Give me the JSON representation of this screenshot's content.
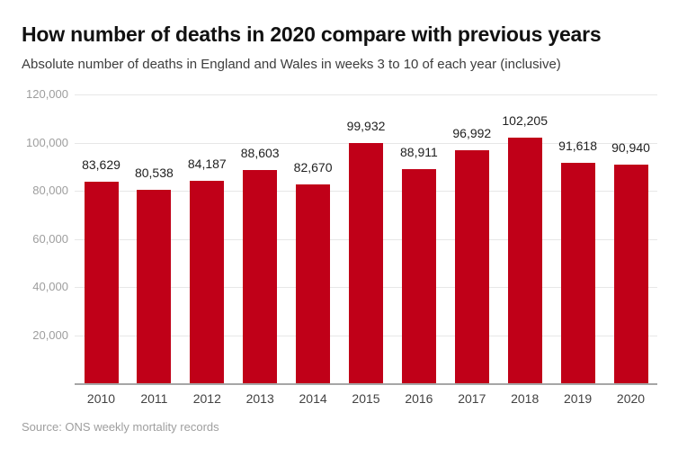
{
  "figure": {
    "title": "How number of deaths in 2020 compare with previous years",
    "subtitle": "Absolute number of deaths in England and Wales in weeks 3 to 10 of each year (inclusive)",
    "source": "Source: ONS weekly mortality records"
  },
  "colors": {
    "bar": "#c00018",
    "grid": "#e7e7e7",
    "axis_line": "#a6a6a6",
    "title_text": "#111111",
    "subtitle_text": "#3d3d3d",
    "ytick_text": "#9e9e9e",
    "xtick_text": "#424242",
    "value_label_text": "#212121",
    "source_text": "#9e9e9e"
  },
  "chart_data": {
    "type": "bar",
    "title": "How number of deaths in 2020 compare with previous years",
    "subtitle": "Absolute number of deaths in England and Wales in weeks 3 to 10 of each year (inclusive)",
    "source": "Source: ONS weekly mortality records",
    "categories": [
      "2010",
      "2011",
      "2012",
      "2013",
      "2014",
      "2015",
      "2016",
      "2017",
      "2018",
      "2019",
      "2020"
    ],
    "values": [
      83629,
      80538,
      84187,
      88603,
      82670,
      99932,
      88911,
      96992,
      102205,
      91618,
      90940
    ],
    "value_labels": [
      "83,629",
      "80,538",
      "84,187",
      "88,603",
      "82,670",
      "99,932",
      "88,911",
      "96,992",
      "102,205",
      "91,618",
      "90,940"
    ],
    "xlabel": "",
    "ylabel": "",
    "ylim": [
      0,
      120000
    ],
    "ytick_interval": 20000,
    "yticks": [
      {
        "value": 20000,
        "label": "20,000"
      },
      {
        "value": 40000,
        "label": "40,000"
      },
      {
        "value": 60000,
        "label": "60,000"
      },
      {
        "value": 80000,
        "label": "80,000"
      },
      {
        "value": 100000,
        "label": "100,000"
      },
      {
        "value": 120000,
        "label": "120,000"
      }
    ],
    "grid": true,
    "legend": false,
    "bar_color": "#c00018"
  }
}
